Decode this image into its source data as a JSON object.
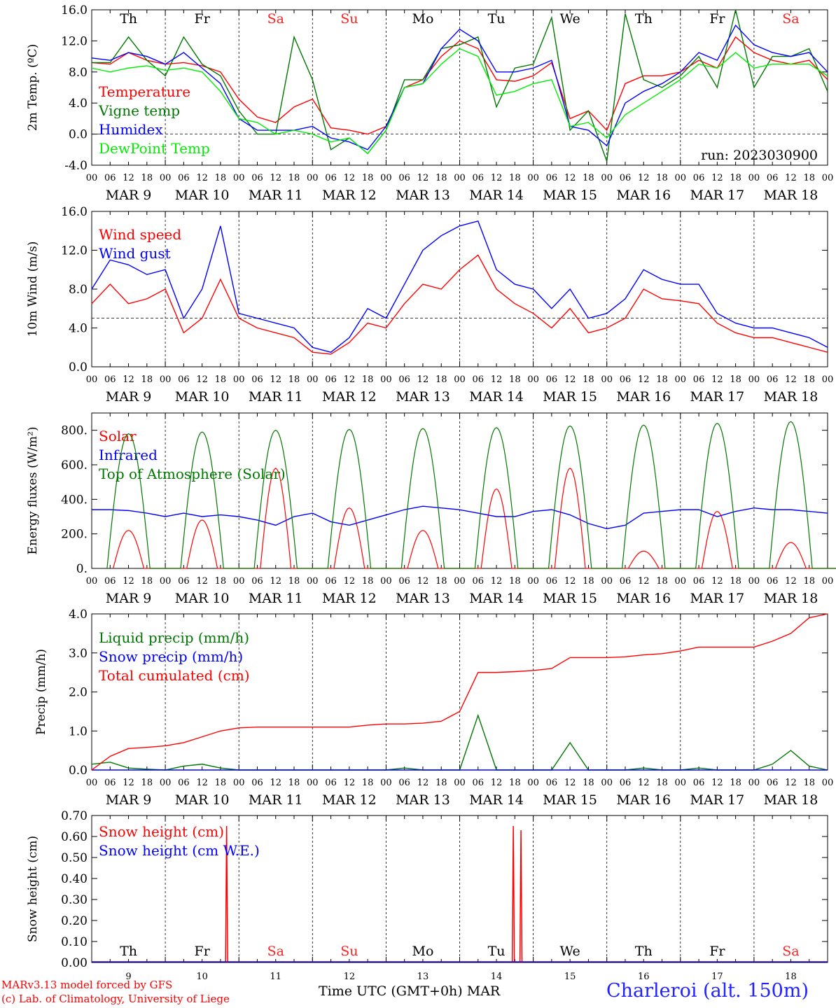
{
  "chart_data": [
    {
      "type": "line",
      "ylabel": "2m Temp. (ºC)",
      "ylim": [
        -4,
        16
      ],
      "yticks": [
        "-4.0",
        "0.0",
        "4.0",
        "8.0",
        "12.0",
        "16.0"
      ],
      "ytick_values": [
        -4,
        0,
        4,
        8,
        12,
        16
      ],
      "reference_line": 0,
      "day_labels": [
        "Th",
        "Fr",
        "Sa",
        "Su",
        "Mo",
        "Tu",
        "We",
        "Th",
        "Fr",
        "Sa"
      ],
      "annotation": "run: 2023030900",
      "x": [
        0,
        6,
        12,
        18,
        24,
        30,
        36,
        42,
        48,
        54,
        60,
        66,
        72,
        78,
        84,
        90,
        96,
        102,
        108,
        114,
        120,
        126,
        132,
        138,
        144,
        150,
        156,
        162,
        168,
        174,
        180,
        186,
        192,
        198,
        204,
        210,
        216,
        222,
        228,
        234,
        240
      ],
      "series": [
        {
          "name": "Temperature",
          "color": "#ff0000",
          "values": [
            9.2,
            9.0,
            10.5,
            9.5,
            9.0,
            9.2,
            8.8,
            8.0,
            4.5,
            2.2,
            1.5,
            3.5,
            4.5,
            0.8,
            0.5,
            0.0,
            1.0,
            6.0,
            7.0,
            10.0,
            12.0,
            11.0,
            7.0,
            6.8,
            7.5,
            9.2,
            2.0,
            3.0,
            0.5,
            6.5,
            7.5,
            7.5,
            8.0,
            9.5,
            8.5,
            12.5,
            10.5,
            9.5,
            9.0,
            9.5,
            7.0
          ]
        },
        {
          "name": "Vigne temp",
          "color": "#007700",
          "values": [
            9.2,
            9.2,
            12.5,
            9.5,
            7.5,
            12.5,
            9.0,
            7.5,
            3.0,
            0.0,
            0.0,
            12.5,
            7.0,
            -2.0,
            -0.5,
            -2.5,
            0.5,
            7.0,
            7.0,
            11.0,
            11.5,
            12.5,
            3.5,
            8.5,
            9.0,
            15.0,
            0.5,
            3.0,
            -3.5,
            15.5,
            7.0,
            6.0,
            7.5,
            10.0,
            6.0,
            16.0,
            6.0,
            10.0,
            10.0,
            11.0,
            5.5
          ]
        },
        {
          "name": "Humidex",
          "color": "#0000ff",
          "values": [
            9.8,
            9.5,
            10.5,
            10.0,
            9.0,
            10.5,
            8.5,
            6.5,
            2.0,
            0.5,
            0.5,
            0.5,
            1.0,
            -0.5,
            -1.0,
            -2.0,
            1.0,
            6.0,
            6.5,
            11.0,
            13.5,
            12.0,
            8.0,
            8.0,
            8.5,
            9.5,
            1.0,
            0.5,
            -1.5,
            4.0,
            5.5,
            6.5,
            8.0,
            10.5,
            9.5,
            14.0,
            11.5,
            10.5,
            10.0,
            10.5,
            8.0
          ]
        },
        {
          "name": "DewPoint Temp",
          "color": "#00ee00",
          "values": [
            8.5,
            8.0,
            8.5,
            8.8,
            8.2,
            8.5,
            8.0,
            5.5,
            2.0,
            1.5,
            0.0,
            0.5,
            0.0,
            -1.0,
            -0.5,
            -2.5,
            0.5,
            6.0,
            6.5,
            9.0,
            11.0,
            10.0,
            5.0,
            5.5,
            6.5,
            7.0,
            1.0,
            1.5,
            -0.5,
            2.5,
            4.0,
            5.5,
            7.0,
            9.0,
            8.5,
            10.5,
            8.5,
            9.0,
            9.0,
            9.0,
            7.5
          ]
        }
      ]
    },
    {
      "type": "line",
      "ylabel": "10m Wind (m/s)",
      "ylim": [
        0,
        16
      ],
      "yticks": [
        "0.0",
        "4.0",
        "8.0",
        "12.0",
        "16.0"
      ],
      "ytick_values": [
        0,
        4,
        8,
        12,
        16
      ],
      "reference_line": 5,
      "x": [
        0,
        6,
        12,
        18,
        24,
        30,
        36,
        42,
        48,
        54,
        60,
        66,
        72,
        78,
        84,
        90,
        96,
        102,
        108,
        114,
        120,
        126,
        132,
        138,
        144,
        150,
        156,
        162,
        168,
        174,
        180,
        186,
        192,
        198,
        204,
        210,
        216,
        222,
        228,
        234,
        240
      ],
      "series": [
        {
          "name": "Wind speed",
          "color": "#ff0000",
          "values": [
            6.5,
            8.5,
            6.5,
            7.0,
            8.0,
            3.5,
            5.0,
            9.0,
            5.0,
            4.0,
            3.5,
            3.0,
            1.5,
            1.3,
            2.5,
            4.5,
            4.0,
            6.5,
            8.5,
            8.0,
            10.0,
            11.5,
            8.0,
            6.5,
            5.5,
            4.0,
            6.0,
            3.5,
            4.0,
            5.0,
            8.0,
            7.0,
            6.8,
            6.5,
            4.5,
            3.5,
            3.0,
            3.0,
            2.5,
            2.0,
            1.5
          ]
        },
        {
          "name": "Wind gust",
          "color": "#0000ff",
          "values": [
            8.0,
            11.0,
            10.5,
            9.5,
            10.0,
            5.0,
            8.0,
            14.5,
            5.5,
            5.0,
            4.5,
            4.0,
            2.0,
            1.5,
            3.0,
            6.0,
            5.0,
            8.5,
            12.0,
            13.5,
            14.5,
            15.0,
            10.0,
            8.5,
            8.0,
            6.0,
            8.0,
            5.0,
            5.5,
            7.0,
            10.0,
            9.0,
            8.5,
            8.5,
            5.5,
            4.5,
            4.0,
            4.0,
            3.5,
            3.0,
            2.0
          ]
        }
      ]
    },
    {
      "type": "line",
      "ylabel": "Energy fluxes (W/m²)",
      "ylim": [
        0,
        900
      ],
      "yticks": [
        "0.",
        "200.",
        "400.",
        "600.",
        "800."
      ],
      "ytick_values": [
        0,
        200,
        400,
        600,
        800
      ],
      "days": [
        "9",
        "10",
        "11",
        "12",
        "13",
        "14",
        "15",
        "16",
        "17",
        "18"
      ],
      "series": [
        {
          "name": "Solar",
          "color": "#ff0000",
          "day_peak_values": [
            220,
            280,
            580,
            350,
            220,
            460,
            580,
            100,
            330,
            150
          ]
        },
        {
          "name": "Infrared",
          "color": "#0000ff",
          "values": [
            340,
            340,
            335,
            320,
            300,
            320,
            300,
            310,
            300,
            280,
            250,
            300,
            320,
            270,
            250,
            280,
            310,
            340,
            360,
            350,
            340,
            320,
            300,
            300,
            330,
            340,
            310,
            260,
            230,
            250,
            320,
            330,
            340,
            340,
            300,
            330,
            350,
            340,
            340,
            330,
            320
          ]
        },
        {
          "name": "Top of Atmosphere (Solar)",
          "color": "#007700",
          "day_peak_values": [
            780,
            790,
            800,
            805,
            810,
            815,
            825,
            830,
            840,
            850
          ]
        }
      ],
      "x": [
        0,
        6,
        12,
        18,
        24,
        30,
        36,
        42,
        48,
        54,
        60,
        66,
        72,
        78,
        84,
        90,
        96,
        102,
        108,
        114,
        120,
        126,
        132,
        138,
        144,
        150,
        156,
        162,
        168,
        174,
        180,
        186,
        192,
        198,
        204,
        210,
        216,
        222,
        228,
        234,
        240
      ]
    },
    {
      "type": "line",
      "ylabel": "Precip (mm/h)",
      "ylim": [
        0,
        4
      ],
      "yticks": [
        "0.0",
        "1.0",
        "2.0",
        "3.0",
        "4.0"
      ],
      "ytick_values": [
        0,
        1,
        2,
        3,
        4
      ],
      "x": [
        0,
        6,
        12,
        18,
        24,
        30,
        36,
        42,
        48,
        54,
        60,
        66,
        72,
        78,
        84,
        90,
        96,
        102,
        108,
        114,
        120,
        126,
        132,
        138,
        144,
        150,
        156,
        162,
        168,
        174,
        180,
        186,
        192,
        198,
        204,
        210,
        216,
        222,
        228,
        234,
        240
      ],
      "series": [
        {
          "name": "Liquid precip (mm/h)",
          "color": "#007700",
          "values": [
            0.15,
            0.2,
            0.05,
            0.02,
            0.0,
            0.1,
            0.15,
            0.05,
            0.0,
            0.0,
            0.0,
            0.0,
            0.0,
            0.0,
            0.0,
            0.0,
            0.0,
            0.05,
            0.0,
            0.0,
            0.0,
            1.4,
            0.0,
            0.0,
            0.0,
            0.0,
            0.7,
            0.0,
            0.0,
            0.0,
            0.05,
            0.0,
            0.0,
            0.05,
            0.0,
            0.0,
            0.0,
            0.15,
            0.5,
            0.1,
            0.0
          ]
        },
        {
          "name": "Snow precip (mm/h)",
          "color": "#0000ff",
          "values": [
            0.0,
            0.0,
            0.0,
            0.0,
            0.0,
            0.0,
            0.0,
            0.0,
            0.0,
            0.0,
            0.0,
            0.0,
            0.0,
            0.0,
            0.0,
            0.0,
            0.0,
            0.0,
            0.0,
            0.0,
            0.0,
            0.0,
            0.0,
            0.0,
            0.0,
            0.0,
            0.0,
            0.0,
            0.0,
            0.0,
            0.0,
            0.0,
            0.0,
            0.0,
            0.0,
            0.0,
            0.0,
            0.0,
            0.0,
            0.0,
            0.0
          ]
        },
        {
          "name": "Total cumulated (cm)",
          "color": "#ff0000",
          "values": [
            0.0,
            0.35,
            0.55,
            0.58,
            0.62,
            0.7,
            0.85,
            1.0,
            1.08,
            1.1,
            1.1,
            1.1,
            1.1,
            1.1,
            1.1,
            1.15,
            1.18,
            1.18,
            1.2,
            1.25,
            1.5,
            2.5,
            2.5,
            2.52,
            2.55,
            2.6,
            2.88,
            2.88,
            2.88,
            2.9,
            2.95,
            2.98,
            3.05,
            3.15,
            3.15,
            3.15,
            3.15,
            3.3,
            3.5,
            3.9,
            4.0
          ]
        }
      ]
    },
    {
      "type": "line",
      "ylabel": "Snow height (cm)",
      "ylim": [
        0,
        0.7
      ],
      "yticks": [
        "0.00",
        "0.10",
        "0.20",
        "0.30",
        "0.40",
        "0.50",
        "0.60",
        "0.70"
      ],
      "ytick_values": [
        0,
        0.1,
        0.2,
        0.3,
        0.4,
        0.5,
        0.6,
        0.7
      ],
      "day_labels": [
        "Th",
        "Fr",
        "Sa",
        "Su",
        "Mo",
        "Tu",
        "We",
        "Th",
        "Fr",
        "Sa"
      ],
      "day_numbers": [
        "9",
        "10",
        "11",
        "12",
        "13",
        "14",
        "15",
        "16",
        "17",
        "18"
      ],
      "series": [
        {
          "name": "Snow height (cm)",
          "color": "#ff0000",
          "spikes": [
            {
              "x": 44,
              "y": 0.65
            },
            {
              "x": 137.5,
              "y": 0.65
            },
            {
              "x": 140,
              "y": 0.63
            }
          ]
        },
        {
          "name": "Snow height (cm W.E.)",
          "color": "#0000ff",
          "spikes": []
        }
      ]
    }
  ],
  "x_axis": {
    "hour_ticks": [
      "00",
      "06",
      "12",
      "18"
    ],
    "date_labels": [
      "MAR  9",
      "MAR 10",
      "MAR 11",
      "MAR 12",
      "MAR 13",
      "MAR 14",
      "MAR 15",
      "MAR 16",
      "MAR 17",
      "MAR 18"
    ],
    "weekend_color": "#ff2222",
    "weekday_color": "#000000"
  },
  "footer": {
    "model": "MARv3.13 model forced by GFS",
    "credit": "(c) Lab. of Climatology, University of Liege",
    "xlabel": "Time UTC (GMT+0h)",
    "month": "MAR",
    "station": "Charleroi (alt. 150m)"
  }
}
